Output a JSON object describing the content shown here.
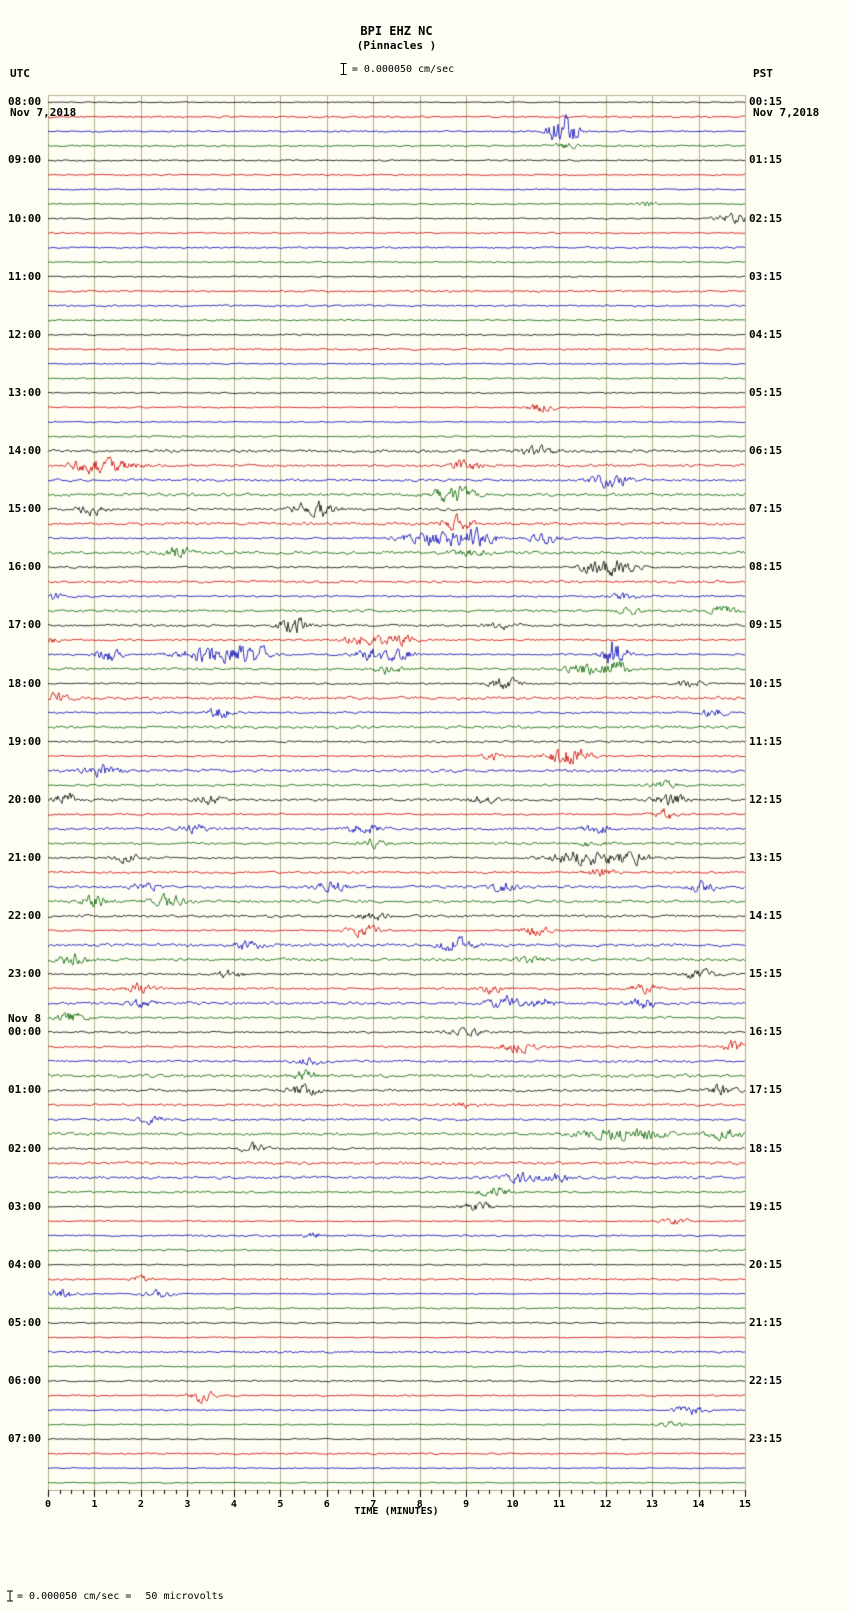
{
  "header": {
    "station": "BPI EHZ NC",
    "location": "(Pinnacles )",
    "scale_label": "= 0.000050 cm/sec",
    "left_tz": "UTC",
    "left_date": "Nov 7,2018",
    "right_tz": "PST",
    "right_date": "Nov 7,2018"
  },
  "footer": {
    "xlabel": "TIME (MINUTES)",
    "note_eq": "= 0.000050 cm/sec =",
    "note_value": "50 microvolts"
  },
  "chart_data": {
    "type": "line",
    "description": "24-hour helicorder seismogram, 4 traces per hour (15 minutes each), colors cycle black/red/blue/green",
    "xlabel": "TIME (MINUTES)",
    "x_range": [
      0,
      15
    ],
    "x_ticks": [
      0,
      1,
      2,
      3,
      4,
      5,
      6,
      7,
      8,
      9,
      10,
      11,
      12,
      13,
      14,
      15
    ],
    "grid": true,
    "grid_color": "#b0b090",
    "trace_colors": [
      "#000000",
      "#cc0000",
      "#0000bb",
      "#006600"
    ],
    "noise_base": 1.0,
    "hours_utc": [
      "08:00",
      "09:00",
      "10:00",
      "11:00",
      "12:00",
      "13:00",
      "14:00",
      "15:00",
      "16:00",
      "17:00",
      "18:00",
      "19:00",
      "20:00",
      "21:00",
      "22:00",
      "23:00",
      "00:00",
      "01:00",
      "02:00",
      "03:00",
      "04:00",
      "05:00",
      "06:00",
      "07:00"
    ],
    "right_labels_pst": [
      "00:15",
      "01:15",
      "02:15",
      "03:15",
      "04:15",
      "05:15",
      "06:15",
      "07:15",
      "08:15",
      "09:15",
      "10:15",
      "11:15",
      "12:15",
      "13:15",
      "14:15",
      "15:15",
      "16:15",
      "17:15",
      "18:15",
      "19:15",
      "20:15",
      "21:15",
      "22:15",
      "23:15"
    ],
    "day_change_label": "Nov 8",
    "day_change_at": "00:00",
    "events": [
      [
        2,
        11.1,
        25,
        0.22
      ],
      [
        3,
        11.15,
        5,
        0.2
      ],
      [
        7,
        12.9,
        6,
        0.15
      ],
      [
        8,
        14.55,
        10,
        0.18
      ],
      [
        8,
        14.9,
        6,
        0.12
      ],
      [
        21,
        10.6,
        8,
        0.2
      ],
      [
        24,
        10.5,
        8,
        0.25
      ],
      [
        25,
        1.15,
        12,
        0.45
      ],
      [
        25,
        9.0,
        8,
        0.2
      ],
      [
        26,
        12.1,
        10,
        0.3
      ],
      [
        27,
        8.7,
        13,
        0.3
      ],
      [
        28,
        0.95,
        9,
        0.2
      ],
      [
        28,
        5.75,
        13,
        0.3
      ],
      [
        29,
        8.8,
        10,
        0.25
      ],
      [
        30,
        8.4,
        12,
        0.55
      ],
      [
        30,
        9.3,
        9,
        0.3
      ],
      [
        30,
        10.7,
        9,
        0.25
      ],
      [
        31,
        2.8,
        9,
        0.2
      ],
      [
        31,
        9.1,
        6,
        0.3
      ],
      [
        32,
        12.2,
        13,
        0.35
      ],
      [
        32,
        11.6,
        6,
        0.15
      ],
      [
        34,
        0.1,
        6,
        0.15
      ],
      [
        34,
        12.4,
        6,
        0.2
      ],
      [
        35,
        12.5,
        5,
        0.2
      ],
      [
        35,
        14.5,
        8,
        0.2
      ],
      [
        36,
        5.3,
        15,
        0.2
      ],
      [
        36,
        9.8,
        6,
        0.2
      ],
      [
        37,
        6.8,
        9,
        0.3
      ],
      [
        37,
        7.6,
        8,
        0.25
      ],
      [
        37,
        0.1,
        6,
        0.1
      ],
      [
        38,
        1.3,
        12,
        0.2
      ],
      [
        38,
        3.5,
        13,
        0.5
      ],
      [
        38,
        4.4,
        12,
        0.3
      ],
      [
        38,
        7.0,
        9,
        0.3
      ],
      [
        38,
        12.2,
        24,
        0.18
      ],
      [
        38,
        7.6,
        8,
        0.2
      ],
      [
        39,
        7.3,
        8,
        0.2
      ],
      [
        39,
        11.5,
        8,
        0.25
      ],
      [
        39,
        12.2,
        12,
        0.2
      ],
      [
        40,
        9.8,
        9,
        0.25
      ],
      [
        40,
        13.8,
        6,
        0.2
      ],
      [
        41,
        0.2,
        8,
        0.15
      ],
      [
        42,
        3.7,
        9,
        0.2
      ],
      [
        42,
        14.3,
        6,
        0.2
      ],
      [
        45,
        11.2,
        18,
        0.3
      ],
      [
        45,
        9.6,
        6,
        0.2
      ],
      [
        46,
        1.2,
        9,
        0.25
      ],
      [
        47,
        13.2,
        6,
        0.25
      ],
      [
        48,
        0.4,
        9,
        0.2
      ],
      [
        48,
        3.5,
        8,
        0.2
      ],
      [
        48,
        9.4,
        6,
        0.2
      ],
      [
        48,
        13.4,
        9,
        0.25
      ],
      [
        49,
        13.3,
        8,
        0.2
      ],
      [
        50,
        3.1,
        8,
        0.2
      ],
      [
        50,
        6.8,
        9,
        0.25
      ],
      [
        50,
        11.8,
        8,
        0.2
      ],
      [
        51,
        7.0,
        6,
        0.2
      ],
      [
        51,
        11.7,
        6,
        0.2
      ],
      [
        52,
        1.7,
        10,
        0.25
      ],
      [
        52,
        11.5,
        12,
        0.5
      ],
      [
        52,
        12.5,
        10,
        0.3
      ],
      [
        53,
        11.9,
        8,
        0.2
      ],
      [
        54,
        2.1,
        8,
        0.2
      ],
      [
        54,
        6.1,
        9,
        0.25
      ],
      [
        54,
        9.8,
        8,
        0.2
      ],
      [
        54,
        14.1,
        8,
        0.2
      ],
      [
        55,
        1.0,
        9,
        0.2
      ],
      [
        55,
        2.6,
        10,
        0.25
      ],
      [
        56,
        7.0,
        6,
        0.2
      ],
      [
        57,
        6.8,
        9,
        0.25
      ],
      [
        57,
        10.5,
        8,
        0.2
      ],
      [
        58,
        4.3,
        8,
        0.2
      ],
      [
        58,
        8.8,
        10,
        0.25
      ],
      [
        59,
        0.5,
        9,
        0.2
      ],
      [
        59,
        10.4,
        6,
        0.2
      ],
      [
        60,
        3.9,
        8,
        0.2
      ],
      [
        60,
        14.0,
        8,
        0.25
      ],
      [
        61,
        2.0,
        8,
        0.2
      ],
      [
        61,
        9.6,
        8,
        0.2
      ],
      [
        61,
        12.8,
        8,
        0.2
      ],
      [
        62,
        2.0,
        6,
        0.2
      ],
      [
        62,
        9.8,
        9,
        0.25
      ],
      [
        62,
        10.6,
        8,
        0.2
      ],
      [
        62,
        12.8,
        8,
        0.2
      ],
      [
        63,
        0.5,
        8,
        0.2
      ],
      [
        64,
        9.0,
        6,
        0.3
      ],
      [
        65,
        10.1,
        9,
        0.25
      ],
      [
        65,
        14.8,
        9,
        0.2
      ],
      [
        66,
        5.6,
        6,
        0.2
      ],
      [
        67,
        5.5,
        8,
        0.2
      ],
      [
        68,
        5.5,
        9,
        0.25
      ],
      [
        68,
        14.5,
        8,
        0.2
      ],
      [
        69,
        9.0,
        5,
        0.15
      ],
      [
        70,
        2.2,
        6,
        0.2
      ],
      [
        71,
        12.4,
        10,
        0.6
      ],
      [
        71,
        14.6,
        9,
        0.3
      ],
      [
        72,
        4.4,
        8,
        0.2
      ],
      [
        74,
        10.2,
        8,
        0.25
      ],
      [
        74,
        11.0,
        6,
        0.2
      ],
      [
        75,
        9.6,
        8,
        0.25
      ],
      [
        76,
        9.2,
        8,
        0.25
      ],
      [
        77,
        13.5,
        6,
        0.2
      ],
      [
        78,
        5.7,
        5,
        0.15
      ],
      [
        81,
        2.0,
        5,
        0.15
      ],
      [
        82,
        0.3,
        8,
        0.2
      ],
      [
        82,
        2.4,
        6,
        0.25
      ],
      [
        89,
        3.3,
        9,
        0.2
      ],
      [
        90,
        13.8,
        8,
        0.25
      ],
      [
        91,
        13.4,
        6,
        0.2
      ]
    ]
  }
}
